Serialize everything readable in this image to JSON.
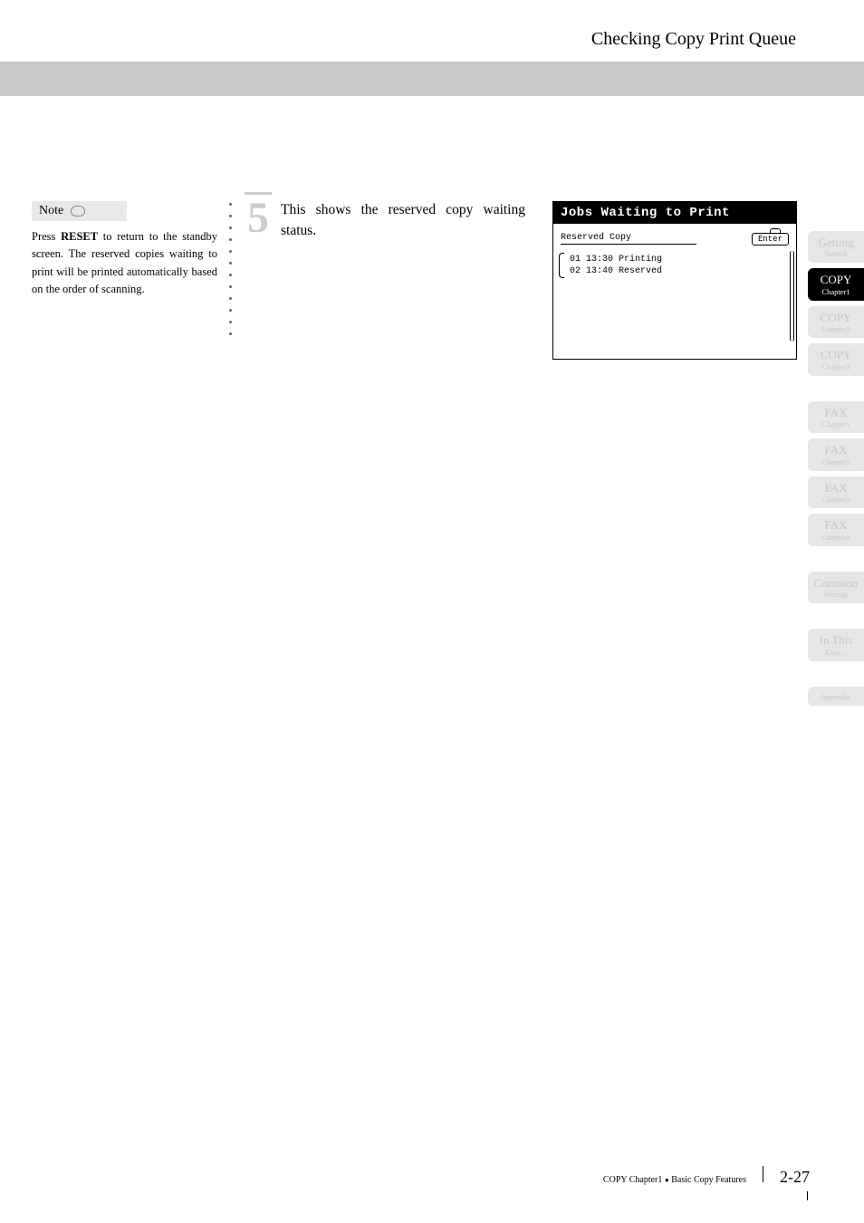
{
  "header": {
    "title": "Checking Copy Print Queue"
  },
  "note": {
    "label": "Note",
    "body_parts": [
      "Press ",
      "RESET",
      " to return to the standby screen. The reserved copies waiting to print will be printed automatically based on the order of scanning."
    ]
  },
  "step": {
    "number": "5",
    "text": "This shows the reserved copy waiting status."
  },
  "lcd": {
    "header": "Jobs Waiting to Print",
    "reserved_label": "Reserved Copy",
    "enter_label": "Enter",
    "jobs": [
      "01 13:30 Printing",
      "02 13:40 Reserved"
    ]
  },
  "tabs": [
    {
      "title": "Getting",
      "sub": "Started",
      "active": false
    },
    {
      "title": "COPY",
      "sub": "Chapter1",
      "active": true
    },
    {
      "title": "COPY",
      "sub": "Chapter2",
      "active": false
    },
    {
      "title": "COPY",
      "sub": "Chapter3",
      "active": false
    }
  ],
  "tabs2": [
    {
      "title": "FAX",
      "sub": "Chapter1",
      "active": false
    },
    {
      "title": "FAX",
      "sub": "Chapter2",
      "active": false
    },
    {
      "title": "FAX",
      "sub": "Chapter3",
      "active": false
    },
    {
      "title": "FAX",
      "sub": "Chapter4",
      "active": false
    }
  ],
  "tabs3": [
    {
      "title": "Common",
      "sub": "Settings",
      "active": false
    }
  ],
  "tabs4": [
    {
      "title": "In This",
      "sub": "Case...",
      "active": false
    }
  ],
  "tabs5": [
    {
      "title": "",
      "sub": "Appendix",
      "active": false
    }
  ],
  "footer": {
    "breadcrumb_chapter": "COPY Chapter1",
    "breadcrumb_section": "Basic Copy Features",
    "page": "2-27"
  }
}
